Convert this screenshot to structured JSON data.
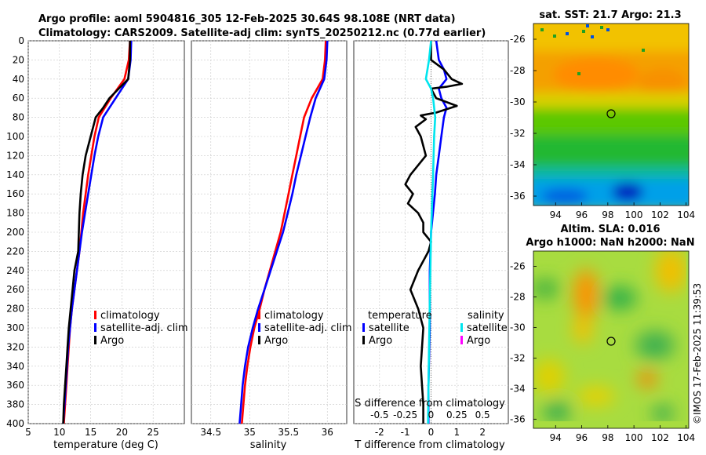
{
  "header": {
    "line1": "Argo profile: aoml 5904816_305 12-Feb-2025 30.64S 98.108E (NRT data)",
    "line2": "Climatology: CARS2009. Satellite-adj clim: synTS_20250212.nc (0.77d earlier)"
  },
  "colors": {
    "climatology": "#ff0000",
    "satellite": "#0000ff",
    "argo": "#000000",
    "salinity_satellite": "#00e5ee",
    "salinity_argo": "#ff00ff"
  },
  "chart_data": [
    {
      "type": "line",
      "title": "",
      "xlabel": "temperature (deg C)",
      "ylabel": "",
      "xlim": [
        5,
        30
      ],
      "ylim": [
        400,
        0
      ],
      "xticks": [
        "5",
        "10",
        "15",
        "20",
        "25"
      ],
      "yticks": [
        "0",
        "20",
        "40",
        "60",
        "80",
        "100",
        "120",
        "140",
        "160",
        "180",
        "200",
        "220",
        "240",
        "260",
        "280",
        "300",
        "320",
        "340",
        "360",
        "380",
        "400"
      ],
      "legend": [
        "climatology",
        "satellite-adj. clim",
        "Argo"
      ],
      "series": [
        {
          "name": "climatology",
          "color": "#ff0000",
          "depth": [
            0,
            20,
            40,
            60,
            80,
            100,
            120,
            140,
            160,
            180,
            200,
            220,
            240,
            260,
            280,
            300,
            320,
            340,
            360,
            380,
            400
          ],
          "values": [
            21.3,
            21.1,
            20.4,
            18.2,
            16.3,
            15.6,
            15.1,
            14.6,
            14.2,
            13.8,
            13.5,
            13.2,
            12.8,
            12.4,
            12.0,
            11.7,
            11.5,
            11.3,
            11.1,
            10.9,
            10.7
          ]
        },
        {
          "name": "satellite-adj. clim",
          "color": "#0000ff",
          "depth": [
            0,
            20,
            40,
            60,
            80,
            100,
            120,
            140,
            160,
            180,
            200,
            220,
            240,
            260,
            280,
            300,
            320,
            340,
            360,
            380,
            400
          ],
          "values": [
            21.5,
            21.4,
            21.0,
            19.0,
            17.0,
            16.2,
            15.6,
            15.1,
            14.6,
            14.1,
            13.6,
            13.2,
            12.8,
            12.4,
            12.0,
            11.7,
            11.4,
            11.2,
            11.0,
            10.8,
            10.6
          ]
        },
        {
          "name": "Argo",
          "color": "#000000",
          "depth": [
            0,
            20,
            40,
            50,
            60,
            70,
            80,
            100,
            120,
            140,
            160,
            180,
            200,
            220,
            240,
            260,
            280,
            300,
            320,
            340,
            360,
            380,
            400
          ],
          "values": [
            21.3,
            21.3,
            21.0,
            19.5,
            18.0,
            17.0,
            15.8,
            15.0,
            14.2,
            13.7,
            13.4,
            13.2,
            13.1,
            13.0,
            12.4,
            12.1,
            11.8,
            11.5,
            11.3,
            11.1,
            10.9,
            10.7,
            10.6
          ]
        }
      ]
    },
    {
      "type": "line",
      "title": "",
      "xlabel": "salinity",
      "ylabel": "",
      "xlim": [
        34.25,
        36.25
      ],
      "ylim": [
        400,
        0
      ],
      "xticks": [
        "34.5",
        "35",
        "35.5",
        "36"
      ],
      "legend": [
        "climatology",
        "satellite-adj. clim",
        "Argo"
      ],
      "series": [
        {
          "name": "climatology",
          "color": "#ff0000",
          "depth": [
            0,
            20,
            40,
            60,
            80,
            100,
            120,
            140,
            160,
            180,
            200,
            220,
            240,
            260,
            280,
            300,
            320,
            340,
            360,
            380,
            400
          ],
          "values": [
            35.98,
            35.97,
            35.94,
            35.8,
            35.7,
            35.65,
            35.6,
            35.55,
            35.5,
            35.45,
            35.4,
            35.33,
            35.26,
            35.19,
            35.13,
            35.06,
            35.01,
            34.97,
            34.94,
            34.92,
            34.9
          ]
        },
        {
          "name": "satellite-adj. clim",
          "color": "#0000ff",
          "depth": [
            0,
            20,
            40,
            60,
            80,
            100,
            120,
            140,
            160,
            180,
            200,
            220,
            240,
            260,
            280,
            300,
            320,
            340,
            360,
            380,
            400
          ],
          "values": [
            36.0,
            35.99,
            35.96,
            35.85,
            35.78,
            35.72,
            35.66,
            35.6,
            35.55,
            35.49,
            35.43,
            35.35,
            35.27,
            35.19,
            35.11,
            35.04,
            34.98,
            34.94,
            34.91,
            34.89,
            34.87
          ]
        }
      ]
    },
    {
      "type": "line",
      "title": "",
      "xlabel": "T difference from climatology",
      "xlabel_top": "S difference from climatology",
      "xlim": [
        -3,
        3
      ],
      "ylim": [
        400,
        0
      ],
      "xticks": [
        "-2",
        "-1",
        "0",
        "1",
        "2"
      ],
      "xticks_top": [
        "-0.5",
        "-0.25",
        "0",
        "0.25",
        "0.5"
      ],
      "legend_temperature_title": "temperature",
      "legend_salinity_title": "salinity",
      "legend_temperature": [
        "satellite",
        "Argo"
      ],
      "legend_salinity": [
        "satellite",
        "Argo"
      ],
      "series": [
        {
          "name": "temperature satellite",
          "color": "#0000ff",
          "depth": [
            0,
            20,
            30,
            40,
            50,
            60,
            70,
            80,
            100,
            120,
            140,
            160,
            200,
            240,
            300,
            360,
            400
          ],
          "values": [
            0.2,
            0.3,
            0.5,
            0.6,
            0.3,
            0.4,
            0.6,
            0.5,
            0.4,
            0.3,
            0.2,
            0.15,
            0.0,
            -0.05,
            -0.05,
            -0.1,
            -0.1
          ]
        },
        {
          "name": "temperature Argo",
          "color": "#000000",
          "depth": [
            0,
            20,
            30,
            40,
            45,
            48,
            50,
            60,
            68,
            75,
            78,
            82,
            90,
            100,
            120,
            140,
            150,
            160,
            170,
            180,
            190,
            200,
            210,
            220,
            240,
            260,
            280,
            300,
            340,
            380,
            400
          ],
          "values": [
            0.0,
            0.0,
            0.5,
            0.8,
            1.2,
            0.6,
            0.0,
            0.2,
            1.0,
            0.2,
            -0.4,
            -0.2,
            -0.6,
            -0.4,
            -0.2,
            -0.8,
            -1.0,
            -0.7,
            -0.9,
            -0.5,
            -0.3,
            -0.3,
            0.0,
            -0.1,
            -0.5,
            -0.8,
            -0.5,
            -0.3,
            -0.4,
            -0.3,
            -0.3
          ]
        },
        {
          "name": "salinity satellite",
          "color": "#00e5ee",
          "depth": [
            0,
            20,
            40,
            50,
            60,
            80,
            100,
            140,
            200,
            260,
            320,
            400
          ],
          "values": [
            0.0,
            -0.02,
            -0.05,
            0.0,
            0.02,
            0.04,
            0.03,
            0.02,
            0.0,
            -0.01,
            -0.02,
            -0.03
          ]
        }
      ]
    },
    {
      "type": "heatmap",
      "title": "sat. SST: 21.7 Argo: 21.3",
      "xticks": [
        "94",
        "96",
        "98",
        "100",
        "102",
        "104"
      ],
      "yticks": [
        "-26",
        "-28",
        "-30",
        "-32",
        "-34",
        "-36"
      ],
      "xlim": [
        92.3,
        104.2
      ],
      "ylim": [
        -36.6,
        -25.0
      ],
      "marker": {
        "lon": 98.108,
        "lat": -30.64
      }
    },
    {
      "type": "heatmap",
      "title_line1": "Altim. SLA: 0.016",
      "title_line2": "Argo h1000: NaN h2000: NaN",
      "xticks": [
        "94",
        "96",
        "98",
        "100",
        "102",
        "104"
      ],
      "yticks": [
        "-26",
        "-28",
        "-30",
        "-32",
        "-34",
        "-36"
      ],
      "xlim": [
        92.3,
        104.2
      ],
      "ylim": [
        -36.6,
        -25.0
      ],
      "marker": {
        "lon": 98.108,
        "lat": -30.64
      }
    }
  ],
  "credit": "©IMOS 17-Feb-2025 11:39:53"
}
